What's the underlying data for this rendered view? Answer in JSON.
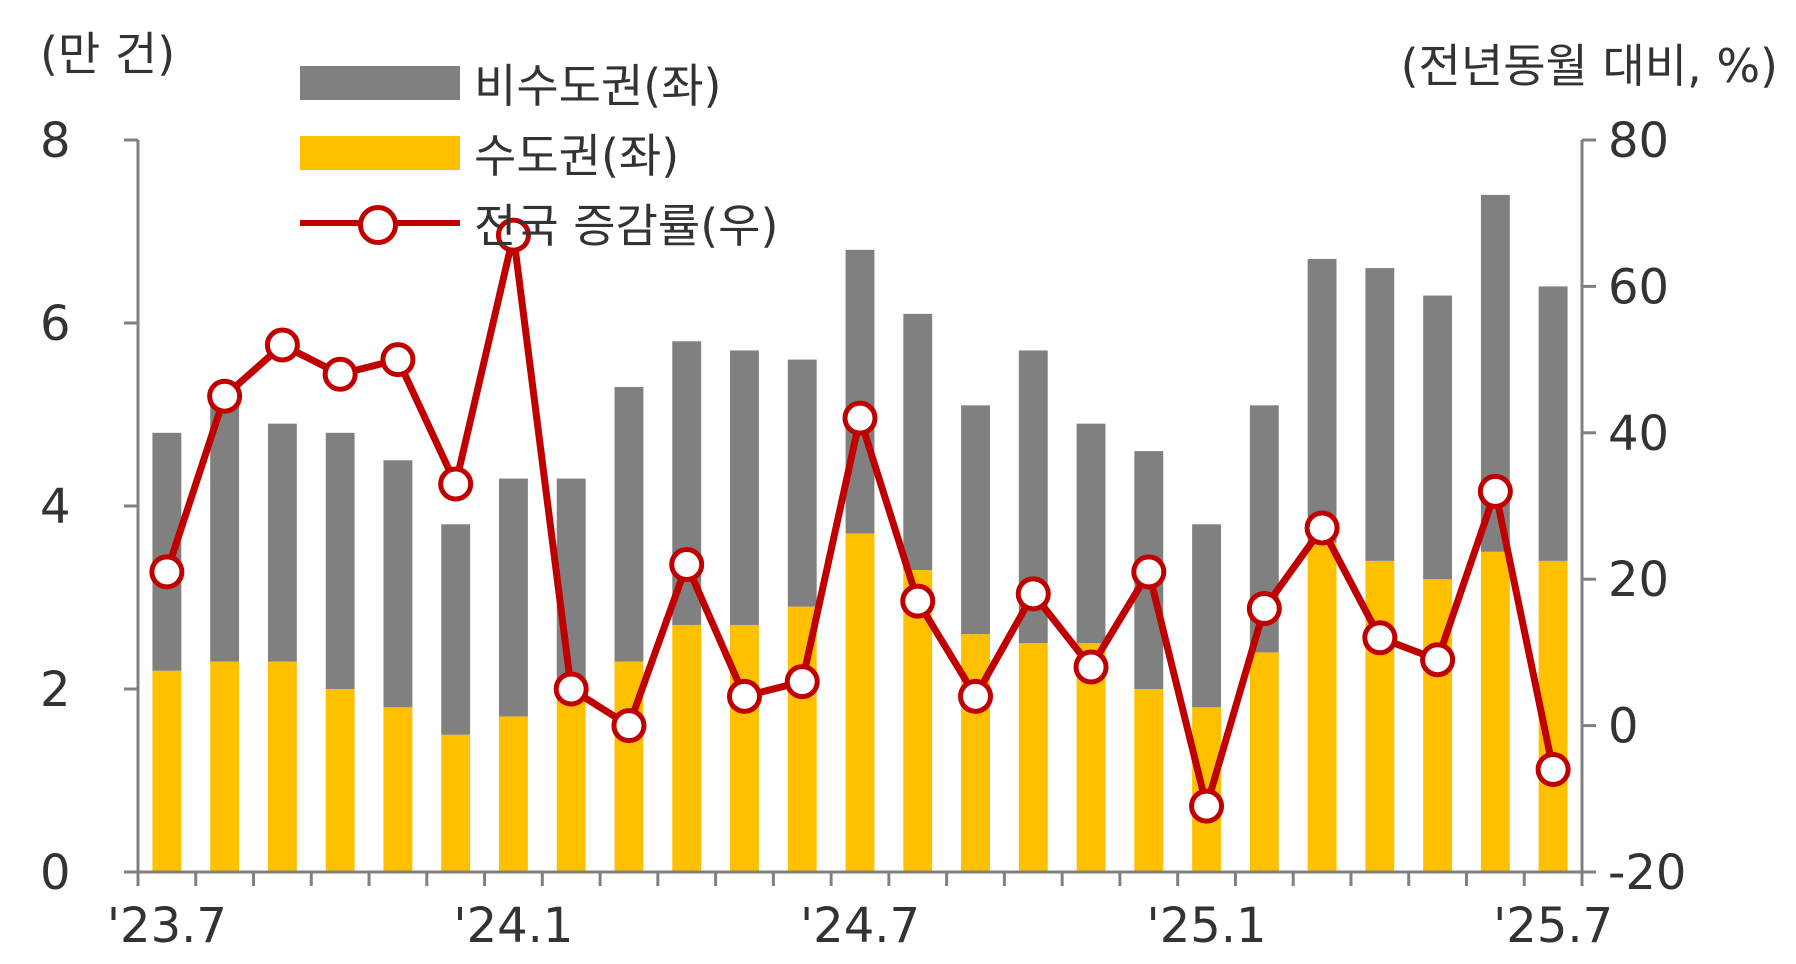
{
  "chart_data": {
    "type": "bar",
    "stacked": true,
    "left_axis": {
      "unit_label": "(만 건)",
      "ylim": [
        0,
        8
      ],
      "ticks": [
        "0",
        "2",
        "4",
        "6",
        "8"
      ]
    },
    "right_axis": {
      "unit_label": "(전년동월 대비, %)",
      "ylim": [
        -20,
        80
      ],
      "ticks": [
        "-20",
        "0",
        "20",
        "40",
        "60",
        "80"
      ]
    },
    "x_tick_labels": [
      "'23.7",
      "'24.1",
      "'24.7",
      "'25.1",
      "'25.7"
    ],
    "categories": [
      "'23.7",
      "'23.8",
      "'23.9",
      "'23.10",
      "'23.11",
      "'23.12",
      "'24.1",
      "'24.2",
      "'24.3",
      "'24.4",
      "'24.5",
      "'24.6",
      "'24.7",
      "'24.8",
      "'24.9",
      "'24.10",
      "'24.11",
      "'24.12",
      "'25.1",
      "'25.2",
      "'25.3",
      "'25.4",
      "'25.5",
      "'25.6",
      "'25.7"
    ],
    "series": [
      {
        "name": "수도권(좌)",
        "type": "bar",
        "axis": "left",
        "color": "#FFC000",
        "values": [
          2.2,
          2.3,
          2.3,
          2.0,
          1.8,
          1.5,
          1.7,
          2.0,
          2.3,
          2.7,
          2.7,
          2.9,
          3.7,
          3.3,
          2.6,
          2.5,
          2.5,
          2.0,
          1.8,
          2.4,
          3.6,
          3.4,
          3.2,
          3.5,
          3.4
        ]
      },
      {
        "name": "비수도권(좌)",
        "type": "bar",
        "axis": "left",
        "color": "#808080",
        "values": [
          2.6,
          2.8,
          2.6,
          2.8,
          2.7,
          2.3,
          2.6,
          2.3,
          3.0,
          3.1,
          3.0,
          2.7,
          3.1,
          2.8,
          2.5,
          3.2,
          2.4,
          2.6,
          2.0,
          2.7,
          3.1,
          3.2,
          3.1,
          3.9,
          3.0
        ]
      },
      {
        "name": "전국 증감률(우)",
        "type": "line",
        "axis": "right",
        "color": "#C00000",
        "values": [
          21,
          45,
          52,
          48,
          50,
          33,
          67,
          5,
          0,
          22,
          4,
          6,
          42,
          17,
          4,
          18,
          8,
          21,
          -11,
          16,
          27,
          12,
          9,
          32,
          -6
        ]
      }
    ],
    "legend_position": "top-left",
    "grid": false
  }
}
